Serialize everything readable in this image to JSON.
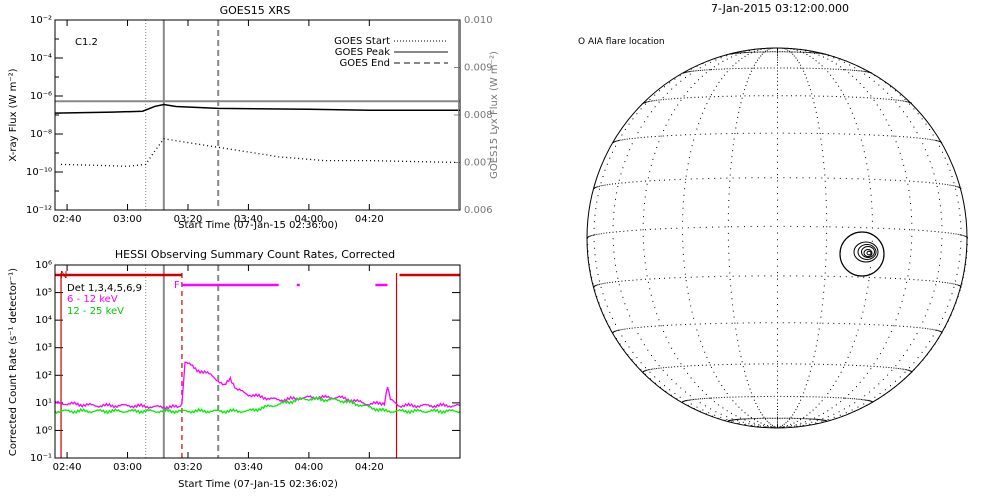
{
  "chart_data": [
    {
      "type": "line",
      "title": "GOES15 XRS",
      "xlabel": "Start Time (07-Jan-15 02:36:00)",
      "ylabel": "X-ray Flux (W m⁻²)",
      "ylabel_right": "GOES15 Lyx Flux (W m⁻²)",
      "annotation": "C1.2",
      "x_ticks": [
        "02:40",
        "03:00",
        "03:20",
        "03:40",
        "04:00",
        "04:20"
      ],
      "y_ticks": [
        "10⁻¹²",
        "10⁻¹⁰",
        "10⁻⁸",
        "10⁻⁶",
        "10⁻⁴",
        "10⁻²"
      ],
      "y2_ticks": [
        "0.006",
        "0.007",
        "0.008",
        "0.009",
        "0.010"
      ],
      "ylim_log10": [
        -12,
        -2
      ],
      "y2lim": [
        0.006,
        0.01
      ],
      "xlim_min": [
        156,
        290
      ],
      "legend": [
        {
          "name": "GOES Start",
          "style": "dotted"
        },
        {
          "name": "GOES Peak",
          "style": "solid"
        },
        {
          "name": "GOES End",
          "style": "dashed"
        }
      ],
      "legend_position": "top-right",
      "markers_min": {
        "start": 186,
        "peak": 192,
        "end": 210
      },
      "series": [
        {
          "name": "long",
          "color": "#000000",
          "style": "solid",
          "x": [
            156,
            175,
            185,
            189,
            192,
            196,
            210,
            240,
            260,
            290
          ],
          "log10": [
            -6.9,
            -6.85,
            -6.8,
            -6.55,
            -6.45,
            -6.55,
            -6.65,
            -6.7,
            -6.75,
            -6.75
          ]
        },
        {
          "name": "lyx",
          "color": "#888888",
          "style": "solid",
          "x": [
            156,
            200,
            240,
            290
          ],
          "values": [
            0.00829,
            0.00829,
            0.00829,
            0.00829
          ]
        },
        {
          "name": "short",
          "color": "#000000",
          "style": "dotted",
          "x": [
            158,
            170,
            180,
            186,
            189,
            192,
            200,
            210,
            220,
            230,
            245,
            260,
            275,
            290
          ],
          "log10": [
            -9.6,
            -9.65,
            -9.7,
            -9.6,
            -8.9,
            -8.25,
            -8.45,
            -8.7,
            -8.95,
            -9.2,
            -9.4,
            -9.4,
            -9.45,
            -9.5
          ]
        }
      ]
    },
    {
      "type": "line",
      "title": "HESSI Observing Summary Count Rates, Corrected",
      "xlabel": "Start Time (07-Jan-15 02:36:02)",
      "ylabel": "Corrected Count Rate (s⁻¹ detector⁻¹)",
      "x_ticks": [
        "02:40",
        "03:00",
        "03:20",
        "03:40",
        "04:00",
        "04:20"
      ],
      "y_ticks": [
        "10⁻¹",
        "10⁰",
        "10¹",
        "10²",
        "10³",
        "10⁴",
        "10⁵",
        "10⁶"
      ],
      "ylim_log10": [
        -1,
        6
      ],
      "xlim_min": [
        156,
        290
      ],
      "legend_text": "Det 1,3,4,5,6,9",
      "legend": [
        {
          "name": "6 - 12 keV",
          "color": "#ff00ff"
        },
        {
          "name": "12 - 25 keV",
          "color": "#00ee00"
        }
      ],
      "flags": [
        {
          "label": "N",
          "color": "#cc0000",
          "segments": [
            [
              156,
              198
            ],
            [
              270,
              290
            ]
          ],
          "level": "top"
        },
        {
          "label": "F",
          "color": "#ff00ff",
          "segments": [
            [
              198,
              230
            ],
            [
              236,
              237
            ],
            [
              262,
              266
            ]
          ],
          "level": "mid"
        }
      ],
      "markers_min": {
        "start": 186,
        "peak": 192,
        "end": 210,
        "night_end": 158,
        "night_start": 269,
        "flare_edge": 198
      },
      "series": [
        {
          "name": "6 - 12 keV",
          "color": "#ff00ff",
          "x": [
            156,
            170,
            180,
            190,
            197,
            198,
            199,
            203,
            208,
            212,
            214,
            216,
            220,
            230,
            240,
            250,
            260,
            265,
            266,
            267,
            270,
            290
          ],
          "log10": [
            1.0,
            0.9,
            0.9,
            0.85,
            0.85,
            1.0,
            2.5,
            2.2,
            2.0,
            1.6,
            1.9,
            1.5,
            1.3,
            1.1,
            1.2,
            1.2,
            0.95,
            1.0,
            1.6,
            1.1,
            0.9,
            0.9
          ]
        },
        {
          "name": "12 - 25 keV",
          "color": "#00ee00",
          "x": [
            156,
            175,
            198,
            220,
            228,
            238,
            250,
            258,
            265,
            275,
            290
          ],
          "log10": [
            0.7,
            0.7,
            0.7,
            0.7,
            0.9,
            1.15,
            1.1,
            0.9,
            0.7,
            0.7,
            0.7
          ]
        }
      ]
    }
  ],
  "disk": {
    "title": "7-Jan-2015 03:12:00.000",
    "label": "O AIA flare location"
  }
}
